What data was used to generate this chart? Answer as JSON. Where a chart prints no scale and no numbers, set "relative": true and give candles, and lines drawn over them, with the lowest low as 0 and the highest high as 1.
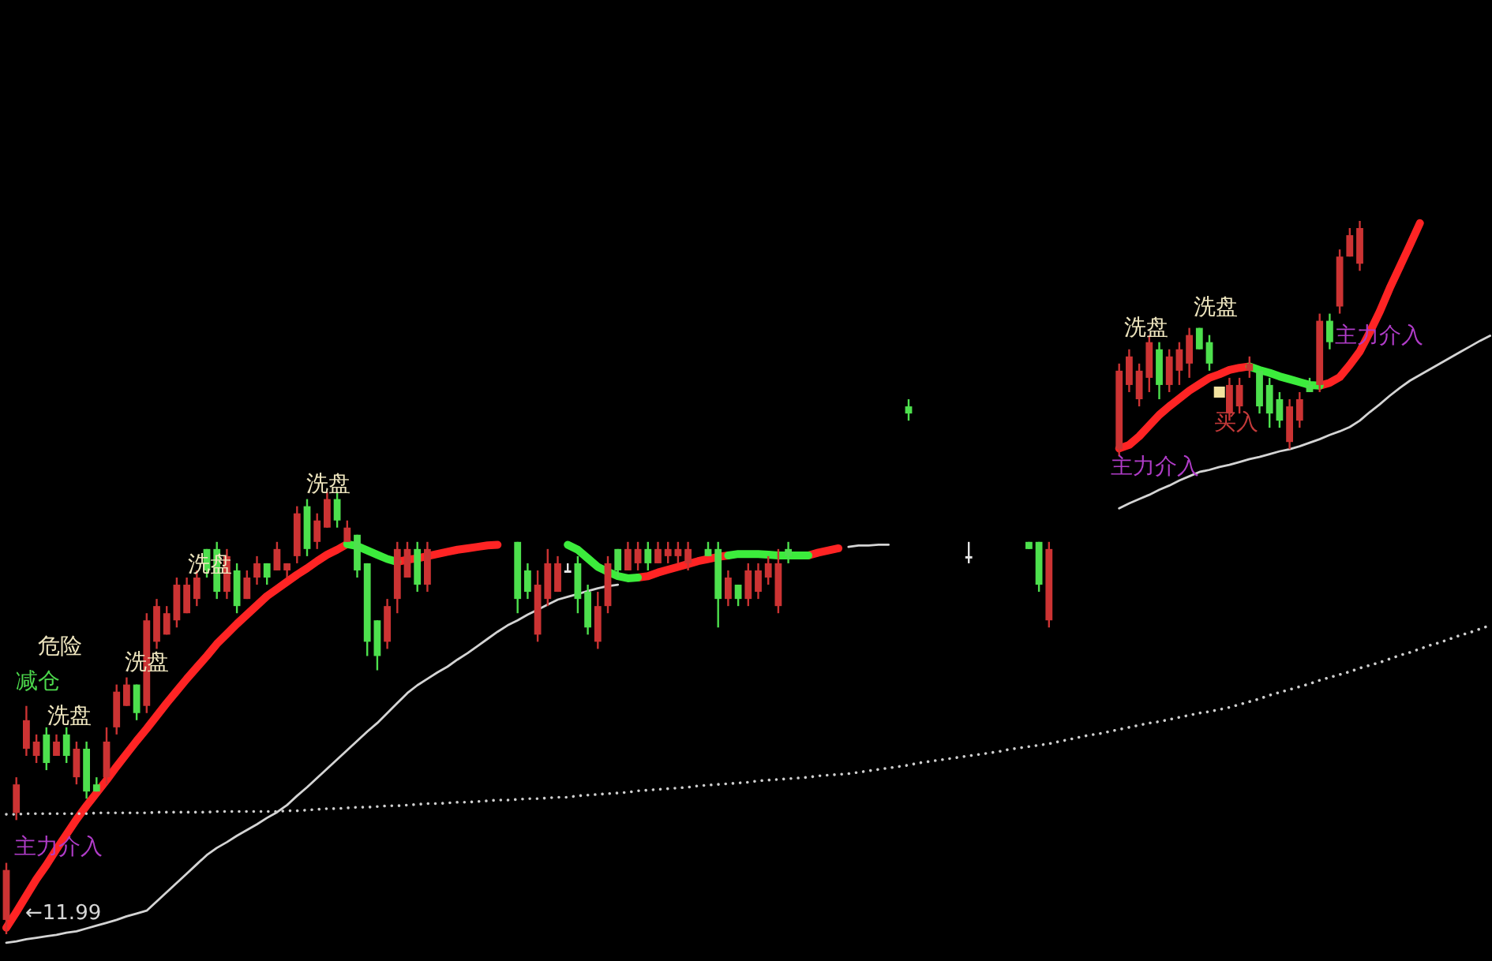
{
  "chart_data": {
    "type": "candlestick",
    "relative": true,
    "categories": [
      null,
      null,
      null,
      null,
      null,
      null,
      null,
      null,
      null,
      null,
      null,
      null,
      null,
      null,
      null,
      null,
      null,
      null,
      null,
      null,
      null,
      null,
      null,
      null,
      null,
      null,
      null,
      null,
      null,
      null,
      null,
      null,
      null,
      null,
      null,
      null,
      null,
      null,
      null,
      null,
      null,
      null,
      null,
      null,
      null,
      null,
      null,
      null,
      null,
      null,
      null,
      null,
      null,
      null,
      null,
      null,
      null,
      null,
      null,
      null,
      null,
      null,
      null,
      null,
      null,
      null,
      null,
      null,
      null,
      null,
      null,
      null,
      null,
      null,
      null,
      null,
      null,
      null,
      null,
      null,
      null,
      null,
      null,
      null,
      null,
      null,
      null,
      null,
      null,
      null,
      null,
      null,
      null,
      null,
      null,
      null,
      null,
      null,
      null,
      null,
      null,
      null,
      null,
      null,
      null,
      null,
      null,
      null,
      null,
      null,
      null,
      null,
      null,
      null,
      null,
      null,
      null,
      null,
      null,
      null,
      null,
      null,
      null,
      null,
      null,
      null,
      null,
      null,
      null,
      null,
      null,
      null,
      null,
      null,
      null,
      null,
      null,
      null,
      null,
      null,
      null,
      null,
      null,
      null,
      null,
      null,
      null,
      null,
      null
    ],
    "ohlc": [
      [
        0.02,
        0.1,
        0.0,
        0.09
      ],
      [
        0.17,
        0.22,
        0.16,
        0.21
      ],
      [
        0.26,
        0.32,
        0.25,
        0.3
      ],
      [
        0.25,
        0.28,
        0.24,
        0.27
      ],
      [
        0.28,
        0.29,
        0.23,
        0.24
      ],
      [
        0.25,
        0.28,
        0.25,
        0.27
      ],
      [
        0.28,
        0.29,
        0.24,
        0.25
      ],
      [
        0.22,
        0.27,
        0.21,
        0.26
      ],
      [
        0.26,
        0.27,
        0.19,
        0.2
      ],
      [
        0.21,
        0.22,
        0.2,
        0.2
      ],
      [
        0.22,
        0.29,
        0.21,
        0.27
      ],
      [
        0.29,
        0.35,
        0.28,
        0.34
      ],
      [
        0.32,
        0.36,
        0.32,
        0.35
      ],
      [
        0.35,
        0.35,
        0.3,
        0.31
      ],
      [
        0.32,
        0.45,
        0.31,
        0.44
      ],
      [
        0.41,
        0.47,
        0.4,
        0.46
      ],
      [
        0.42,
        0.46,
        0.42,
        0.45
      ],
      [
        0.44,
        0.5,
        0.43,
        0.49
      ],
      [
        0.45,
        0.5,
        0.45,
        0.49
      ],
      [
        0.47,
        0.51,
        0.46,
        0.5
      ],
      [
        0.54,
        0.54,
        0.5,
        0.51
      ],
      [
        0.54,
        0.55,
        0.47,
        0.48
      ],
      [
        0.48,
        0.54,
        0.47,
        0.53
      ],
      [
        0.51,
        0.52,
        0.45,
        0.46
      ],
      [
        0.47,
        0.51,
        0.47,
        0.5
      ],
      [
        0.5,
        0.53,
        0.49,
        0.52
      ],
      [
        0.52,
        0.52,
        0.49,
        0.5
      ],
      [
        0.51,
        0.55,
        0.51,
        0.54
      ],
      [
        0.51,
        0.52,
        0.5,
        0.52
      ],
      [
        0.53,
        0.6,
        0.52,
        0.59
      ],
      [
        0.6,
        0.61,
        0.53,
        0.54
      ],
      [
        0.55,
        0.59,
        0.54,
        0.58
      ],
      [
        0.57,
        0.62,
        0.57,
        0.61
      ],
      [
        0.61,
        0.62,
        0.57,
        0.58
      ],
      [
        0.55,
        0.58,
        0.55,
        0.57
      ],
      [
        0.56,
        0.56,
        0.5,
        0.51
      ],
      [
        0.52,
        0.52,
        0.39,
        0.41
      ],
      [
        0.44,
        0.44,
        0.37,
        0.39
      ],
      [
        0.41,
        0.47,
        0.4,
        0.46
      ],
      [
        0.47,
        0.55,
        0.45,
        0.54
      ],
      [
        0.5,
        0.55,
        0.5,
        0.54
      ],
      [
        0.54,
        0.55,
        0.48,
        0.49
      ],
      [
        0.49,
        0.55,
        0.48,
        0.54
      ],
      null,
      null,
      null,
      null,
      null,
      null,
      null,
      null,
      [
        0.55,
        0.55,
        0.45,
        0.47
      ],
      [
        0.51,
        0.52,
        0.47,
        0.48
      ],
      [
        0.42,
        0.51,
        0.41,
        0.49
      ],
      [
        0.47,
        0.54,
        0.46,
        0.52
      ],
      [
        0.48,
        0.53,
        0.48,
        0.52
      ],
      [
        0.51,
        0.52,
        0.51,
        0.51
      ],
      [
        0.52,
        0.53,
        0.45,
        0.47
      ],
      [
        0.48,
        0.49,
        0.42,
        0.43
      ],
      [
        0.41,
        0.48,
        0.4,
        0.46
      ],
      [
        0.46,
        0.53,
        0.45,
        0.52
      ],
      [
        0.54,
        0.54,
        0.5,
        0.51
      ],
      [
        0.51,
        0.55,
        0.51,
        0.54
      ],
      [
        0.52,
        0.55,
        0.51,
        0.54
      ],
      [
        0.54,
        0.55,
        0.51,
        0.52
      ],
      [
        0.52,
        0.55,
        0.52,
        0.54
      ],
      [
        0.53,
        0.55,
        0.52,
        0.54
      ],
      [
        0.53,
        0.55,
        0.52,
        0.54
      ],
      [
        0.52,
        0.55,
        0.51,
        0.54
      ],
      null,
      [
        0.54,
        0.55,
        0.53,
        0.53
      ],
      [
        0.54,
        0.55,
        0.43,
        0.47
      ],
      [
        0.47,
        0.51,
        0.46,
        0.5
      ],
      [
        0.49,
        0.49,
        0.46,
        0.47
      ],
      [
        0.47,
        0.52,
        0.46,
        0.51
      ],
      [
        0.48,
        0.52,
        0.47,
        0.51
      ],
      [
        0.5,
        0.53,
        0.49,
        0.52
      ],
      [
        0.46,
        0.54,
        0.45,
        0.52
      ],
      [
        0.54,
        0.55,
        0.52,
        0.53
      ],
      null,
      null,
      null,
      null,
      null,
      null,
      null,
      null,
      null,
      null,
      null,
      [
        0.74,
        0.75,
        0.72,
        0.73
      ],
      null,
      null,
      null,
      null,
      null,
      [
        0.53,
        0.55,
        0.52,
        0.53
      ],
      null,
      null,
      null,
      null,
      null,
      [
        0.55,
        0.55,
        0.54,
        0.54
      ],
      [
        0.55,
        0.55,
        0.48,
        0.49
      ],
      [
        0.44,
        0.55,
        0.43,
        0.54
      ],
      null,
      null,
      null,
      null,
      null,
      null,
      [
        0.68,
        0.8,
        0.67,
        0.79
      ],
      [
        0.77,
        0.82,
        0.76,
        0.81
      ],
      [
        0.75,
        0.8,
        0.74,
        0.79
      ],
      [
        0.78,
        0.84,
        0.76,
        0.83
      ],
      [
        0.82,
        0.83,
        0.75,
        0.77
      ],
      [
        0.77,
        0.82,
        0.76,
        0.81
      ],
      [
        0.79,
        0.83,
        0.77,
        0.82
      ],
      [
        0.8,
        0.85,
        0.78,
        0.84
      ],
      [
        0.85,
        0.85,
        0.82,
        0.82
      ],
      [
        0.83,
        0.84,
        0.79,
        0.8
      ],
      null,
      [
        0.73,
        0.78,
        0.72,
        0.77
      ],
      [
        0.74,
        0.78,
        0.73,
        0.77
      ],
      [
        0.79,
        0.81,
        0.78,
        0.8
      ],
      [
        0.79,
        0.79,
        0.73,
        0.74
      ],
      [
        0.77,
        0.78,
        0.71,
        0.73
      ],
      [
        0.75,
        0.76,
        0.71,
        0.72
      ],
      [
        0.69,
        0.75,
        0.68,
        0.74
      ],
      [
        0.72,
        0.76,
        0.71,
        0.75
      ],
      [
        0.77,
        0.78,
        0.76,
        0.76
      ],
      [
        0.77,
        0.87,
        0.76,
        0.86
      ],
      [
        0.86,
        0.87,
        0.82,
        0.83
      ],
      [
        0.88,
        0.96,
        0.87,
        0.95
      ],
      [
        0.95,
        0.99,
        0.95,
        0.98
      ],
      [
        0.94,
        1.0,
        0.93,
        0.99
      ],
      null,
      null,
      null,
      null,
      null,
      null,
      null,
      null,
      null,
      null,
      null,
      null,
      null
    ],
    "colors": [
      "#cc3333",
      "#cc3333",
      "#cc3333",
      "#cc3333",
      "#4de04d",
      "#cc3333",
      "#4de04d",
      "#cc3333",
      "#4de04d",
      "#4de04d",
      "#cc3333",
      "#cc3333",
      "#cc3333",
      "#4de04d",
      "#cc3333",
      "#cc3333",
      "#cc3333",
      "#cc3333",
      "#cc3333",
      "#cc3333",
      "#4de04d",
      "#4de04d",
      "#cc3333",
      "#4de04d",
      "#cc3333",
      "#cc3333",
      "#4de04d",
      "#cc3333",
      "#cc3333",
      "#cc3333",
      "#4de04d",
      "#cc3333",
      "#cc3333",
      "#4de04d",
      "#cc3333",
      "#4de04d",
      "#4de04d",
      "#4de04d",
      "#cc3333",
      "#cc3333",
      "#cc3333",
      "#4de04d",
      "#cc3333",
      null,
      null,
      null,
      null,
      null,
      null,
      null,
      null,
      "#4de04d",
      "#4de04d",
      "#cc3333",
      "#cc3333",
      "#cc3333",
      "#e6e6e6",
      "#4de04d",
      "#4de04d",
      "#cc3333",
      "#cc3333",
      "#4de04d",
      "#cc3333",
      "#cc3333",
      "#4de04d",
      "#cc3333",
      "#cc3333",
      "#cc3333",
      "#cc3333",
      null,
      "#4de04d",
      "#4de04d",
      "#cc3333",
      "#4de04d",
      "#cc3333",
      "#cc3333",
      "#cc3333",
      "#cc3333",
      "#4de04d",
      null,
      null,
      null,
      null,
      null,
      null,
      null,
      null,
      null,
      null,
      null,
      "#4de04d",
      null,
      null,
      null,
      null,
      null,
      "#e6e6e6",
      null,
      null,
      null,
      null,
      null,
      "#4de04d",
      "#4de04d",
      "#cc3333",
      null,
      null,
      null,
      null,
      null,
      null,
      "#cc3333",
      "#cc3333",
      "#cc3333",
      "#cc3333",
      "#4de04d",
      "#cc3333",
      "#cc3333",
      "#cc3333",
      "#4de04d",
      "#4de04d",
      null,
      "#cc3333",
      "#cc3333",
      "#cc3333",
      "#4de04d",
      "#4de04d",
      "#4de04d",
      "#cc3333",
      "#cc3333",
      "#4de04d",
      "#cc3333",
      "#4de04d",
      "#cc3333",
      "#cc3333",
      "#cc3333",
      null,
      null,
      null,
      null,
      null,
      null,
      null,
      null,
      null,
      null,
      null,
      null,
      null
    ],
    "series": [
      {
        "type": "line",
        "color": "#ff2424",
        "values": [
          0.009,
          0.031,
          0.054,
          0.077,
          0.097,
          0.119,
          0.14,
          0.161,
          0.18,
          0.198,
          0.216,
          0.235,
          0.253,
          0.271,
          0.288,
          0.306,
          0.324,
          0.341,
          0.358,
          0.374,
          0.39,
          0.407,
          0.421,
          0.435,
          0.448,
          0.461,
          0.474,
          0.484,
          0.494,
          0.504,
          0.513,
          0.523,
          0.532,
          0.539,
          0.547,
          null,
          null,
          null,
          null,
          0.522,
          0.525,
          0.527,
          0.53,
          0.533,
          0.536,
          0.539,
          0.541,
          0.543,
          0.545,
          0.546,
          null,
          null,
          null,
          null,
          null,
          null,
          null,
          null,
          null,
          null,
          null,
          null,
          null,
          0.5,
          0.502,
          0.507,
          0.511,
          0.515,
          0.519,
          0.523,
          0.526,
          0.529,
          0.531,
          null,
          null,
          null,
          null,
          null,
          null,
          null,
          0.531,
          0.535,
          0.538,
          0.541,
          null,
          null,
          null,
          null,
          null,
          null,
          null,
          null,
          null,
          null,
          null,
          null,
          null,
          null,
          null,
          null,
          null,
          null,
          null,
          null,
          null,
          null,
          null,
          null,
          null,
          null,
          null,
          0.681,
          0.686,
          0.698,
          0.713,
          0.728,
          0.74,
          0.751,
          0.762,
          0.771,
          0.78,
          0.785,
          0.791,
          0.794,
          0.796,
          null,
          null,
          null,
          null,
          null,
          null,
          0.769,
          0.773,
          0.781,
          0.798,
          0.817,
          0.844,
          0.873,
          0.906,
          0.936,
          0.966,
          0.997,
          null,
          null,
          null,
          null,
          null,
          null,
          null
        ]
      },
      {
        "type": "line",
        "color": "#3cec3c",
        "values": [
          null,
          null,
          null,
          null,
          null,
          null,
          null,
          null,
          null,
          null,
          null,
          null,
          null,
          null,
          null,
          null,
          null,
          null,
          null,
          null,
          null,
          null,
          null,
          null,
          null,
          null,
          null,
          null,
          null,
          null,
          null,
          null,
          null,
          null,
          0.547,
          0.544,
          0.538,
          0.532,
          0.526,
          0.522,
          null,
          null,
          null,
          null,
          null,
          null,
          null,
          null,
          null,
          null,
          null,
          null,
          null,
          null,
          null,
          null,
          0.546,
          0.539,
          0.527,
          0.515,
          0.508,
          0.502,
          0.499,
          0.5,
          null,
          null,
          null,
          null,
          null,
          null,
          null,
          null,
          0.531,
          0.533,
          0.533,
          0.533,
          0.532,
          0.531,
          0.531,
          0.531,
          0.531,
          null,
          null,
          null,
          null,
          null,
          null,
          null,
          null,
          null,
          null,
          null,
          null,
          null,
          null,
          null,
          null,
          null,
          null,
          null,
          null,
          null,
          null,
          null,
          null,
          null,
          null,
          null,
          null,
          null,
          null,
          null,
          null,
          null,
          null,
          null,
          null,
          null,
          null,
          null,
          null,
          null,
          null,
          null,
          0.796,
          0.791,
          0.787,
          0.782,
          0.778,
          0.774,
          0.77,
          0.769,
          null,
          null,
          null,
          null,
          null,
          null,
          null,
          null,
          null,
          null,
          null,
          null,
          null,
          null,
          null,
          null,
          null
        ]
      },
      {
        "type": "line",
        "color": "#d4d4d4",
        "values": [
          -0.012,
          -0.01,
          -0.007,
          -0.005,
          -0.003,
          -0.001,
          0.002,
          0.004,
          0.008,
          0.012,
          0.016,
          0.02,
          0.025,
          0.029,
          0.033,
          0.046,
          0.059,
          0.072,
          0.085,
          0.098,
          0.111,
          0.121,
          0.129,
          0.138,
          0.146,
          0.154,
          0.163,
          0.171,
          0.181,
          0.194,
          0.206,
          0.219,
          0.232,
          0.245,
          0.258,
          0.271,
          0.284,
          0.296,
          0.31,
          0.324,
          0.338,
          0.349,
          0.358,
          0.367,
          0.375,
          0.385,
          0.394,
          0.404,
          0.414,
          0.424,
          0.433,
          0.44,
          0.448,
          0.455,
          0.462,
          0.469,
          0.473,
          0.477,
          0.481,
          0.485,
          0.488,
          0.49,
          null,
          null,
          null,
          null,
          null,
          null,
          null,
          null,
          null,
          null,
          null,
          null,
          null,
          null,
          null,
          null,
          null,
          null,
          null,
          null,
          null,
          null,
          0.543,
          0.545,
          0.545,
          0.546,
          0.546,
          null,
          null,
          null,
          null,
          null,
          null,
          null,
          null,
          null,
          null,
          null,
          null,
          null,
          null,
          null,
          null,
          null,
          null,
          null,
          null,
          null,
          null,
          0.597,
          0.604,
          0.61,
          0.616,
          0.623,
          0.629,
          0.636,
          0.642,
          0.648,
          0.651,
          0.655,
          0.658,
          0.662,
          0.666,
          0.669,
          0.673,
          0.677,
          0.68,
          0.684,
          0.689,
          0.694,
          0.7,
          0.705,
          0.711,
          0.72,
          0.732,
          0.743,
          0.755,
          0.766,
          0.776,
          0.784,
          0.792,
          0.8,
          0.808,
          0.816,
          0.824,
          0.832,
          0.839
        ]
      },
      {
        "type": "line",
        "color": "#cfcfcf",
        "line_style": "dotted",
        "values": [
          0.168,
          0.168,
          0.169,
          0.169,
          0.169,
          0.169,
          0.169,
          0.169,
          0.169,
          0.17,
          0.17,
          0.17,
          0.17,
          0.17,
          0.17,
          0.171,
          0.171,
          0.171,
          0.171,
          0.171,
          0.171,
          0.172,
          0.172,
          0.172,
          0.172,
          0.172,
          0.172,
          0.172,
          0.173,
          0.173,
          0.174,
          0.175,
          0.176,
          0.176,
          0.177,
          0.178,
          0.178,
          0.179,
          0.18,
          0.18,
          0.181,
          0.182,
          0.183,
          0.183,
          0.184,
          0.185,
          0.185,
          0.186,
          0.187,
          0.188,
          0.188,
          0.189,
          0.19,
          0.19,
          0.191,
          0.192,
          0.192,
          0.194,
          0.195,
          0.196,
          0.197,
          0.198,
          0.199,
          0.201,
          0.202,
          0.203,
          0.204,
          0.205,
          0.206,
          0.208,
          0.209,
          0.21,
          0.211,
          0.212,
          0.213,
          0.215,
          0.216,
          0.217,
          0.218,
          0.219,
          0.22,
          0.222,
          0.223,
          0.224,
          0.225,
          0.227,
          0.229,
          0.231,
          0.233,
          0.235,
          0.237,
          0.24,
          0.242,
          0.244,
          0.246,
          0.248,
          0.25,
          0.252,
          0.254,
          0.256,
          0.259,
          0.261,
          0.263,
          0.265,
          0.267,
          0.27,
          0.273,
          0.276,
          0.279,
          0.281,
          0.284,
          0.287,
          0.29,
          0.293,
          0.296,
          0.298,
          0.301,
          0.304,
          0.307,
          0.31,
          0.312,
          0.315,
          0.318,
          0.322,
          0.326,
          0.33,
          0.335,
          0.339,
          0.343,
          0.347,
          0.351,
          0.356,
          0.36,
          0.364,
          0.368,
          0.373,
          0.377,
          0.381,
          0.386,
          0.391,
          0.395,
          0.4,
          0.405,
          0.409,
          0.414,
          0.419,
          0.423,
          0.428,
          0.433
        ]
      },
      {
        "type": "scatter",
        "marker": "square",
        "color": "#f3e3a0",
        "values": [
          null,
          null,
          null,
          null,
          null,
          null,
          null,
          null,
          null,
          null,
          null,
          null,
          null,
          null,
          null,
          null,
          null,
          null,
          null,
          null,
          null,
          null,
          null,
          null,
          null,
          null,
          null,
          null,
          null,
          null,
          null,
          null,
          null,
          null,
          null,
          null,
          null,
          null,
          null,
          null,
          null,
          null,
          null,
          null,
          null,
          null,
          null,
          null,
          null,
          null,
          null,
          null,
          null,
          null,
          null,
          null,
          null,
          null,
          null,
          null,
          null,
          null,
          null,
          null,
          null,
          null,
          null,
          null,
          null,
          null,
          null,
          null,
          null,
          null,
          null,
          null,
          null,
          null,
          null,
          null,
          null,
          null,
          null,
          null,
          null,
          null,
          null,
          null,
          null,
          null,
          null,
          null,
          null,
          null,
          null,
          null,
          null,
          null,
          null,
          null,
          null,
          null,
          null,
          null,
          null,
          null,
          null,
          null,
          null,
          null,
          null,
          null,
          null,
          null,
          null,
          null,
          null,
          null,
          null,
          null,
          null,
          0.76,
          null,
          null,
          null,
          null,
          null,
          null,
          null,
          null,
          null,
          null,
          null,
          null,
          null,
          null,
          null,
          null,
          null,
          null,
          null,
          null,
          null,
          null,
          null,
          null,
          null,
          null,
          null
        ]
      }
    ],
    "annotations": [
      "危险",
      "减仓",
      "洗盘",
      "主力介入",
      "←11.99",
      "洗盘",
      "洗盘",
      "洗盘",
      "洗盘",
      "洗盘",
      "买入",
      "主力介入",
      "主力介入"
    ]
  }
}
